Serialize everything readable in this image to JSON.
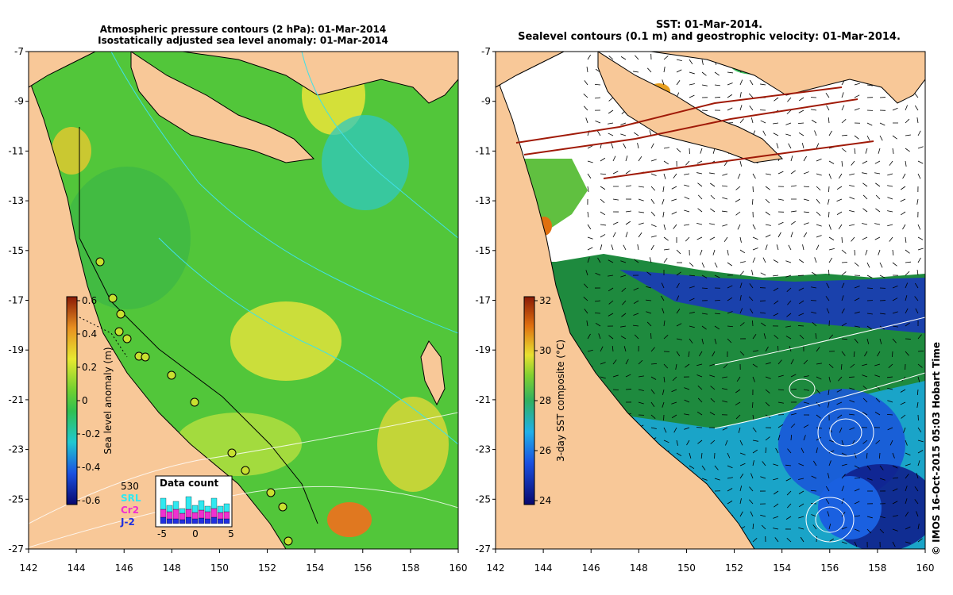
{
  "left_panel": {
    "title_line1": "Atmospheric pressure contours (2 hPa): 01-Mar-2014",
    "title_line2": "Isostatically adjusted sea level anomaly: 01-Mar-2014",
    "colorbar": {
      "label": "Sea level anomaly (m)",
      "ticks": [
        "0.6",
        "0.4",
        "0.2",
        "0",
        "-0.2",
        "-0.4",
        "-0.6"
      ],
      "colors": [
        "#08086e",
        "#1a3fd0",
        "#1aa0e8",
        "#22d0c8",
        "#30c060",
        "#50d040",
        "#a0e030",
        "#e8e830",
        "#f0c020",
        "#e89020",
        "#c85010",
        "#8a1a06"
      ]
    },
    "inset": {
      "title": "Data count",
      "max_label": "530",
      "satellites": [
        "SRL",
        "Cr2",
        "J-2"
      ],
      "satellite_colors": [
        "#30e8f0",
        "#f030d0",
        "#2030e0"
      ],
      "xticks": [
        "-5",
        "0",
        "5"
      ]
    }
  },
  "right_panel": {
    "title_line1": "SST: 01-Mar-2014.",
    "title_line2": "Sealevel contours (0.1 m) and geostrophic velocity: 01-Mar-2014.",
    "colorbar": {
      "label": "3-day SST composite (°C)",
      "ticks": [
        "32",
        "30",
        "28",
        "26",
        "24"
      ],
      "colors": [
        "#08086e",
        "#1030c0",
        "#1a70e0",
        "#20b0e8",
        "#30c8b0",
        "#30b060",
        "#60c040",
        "#a0d830",
        "#e8e030",
        "#f0b020",
        "#e07010",
        "#a82a08"
      ]
    }
  },
  "axes": {
    "x_ticks": [
      "142",
      "144",
      "146",
      "148",
      "150",
      "152",
      "154",
      "156",
      "158",
      "160"
    ],
    "y_ticks": [
      "-7",
      "-9",
      "-11",
      "-13",
      "-15",
      "-17",
      "-19",
      "-21",
      "-23",
      "-25",
      "-27"
    ]
  },
  "credit": "© IMOS 16-Oct-2015 05:03 Hobart Time",
  "colors": {
    "land": "#f8c898",
    "coast": "#000000"
  }
}
